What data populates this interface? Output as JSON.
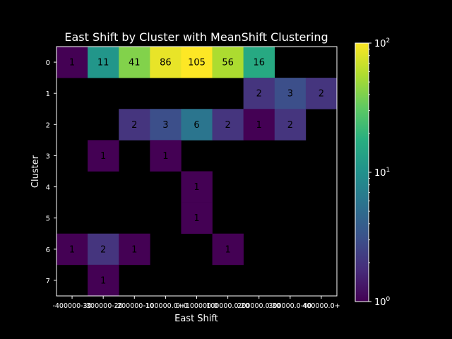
{
  "chart_data": {
    "type": "heatmap",
    "title": "East Shift by Cluster with MeanShift Clustering",
    "xlabel": "East Shift",
    "ylabel": "Cluster",
    "x_categories": [
      "-400000-300000",
      "-300000-200000",
      "-200000-100000",
      "-100000.0+0",
      "0+100000.0",
      "100000.0-200000.0",
      "200000.0-300000.0",
      "300000.0-400000.0",
      "400000.0+"
    ],
    "x_tick_labels_rendered": [
      "-400000-30",
      "-300000-20",
      "-200000-10",
      "-100000.0+0",
      "0+100000.0",
      "100000.0-20",
      "200000.0-30",
      "300000.0-40",
      "400000.0+"
    ],
    "y_categories": [
      "0",
      "1",
      "2",
      "3",
      "4",
      "5",
      "6",
      "7"
    ],
    "values": [
      [
        1,
        11,
        41,
        86,
        105,
        56,
        16,
        null,
        null
      ],
      [
        null,
        null,
        null,
        null,
        null,
        null,
        2,
        3,
        2
      ],
      [
        null,
        null,
        2,
        3,
        6,
        2,
        1,
        2,
        null
      ],
      [
        null,
        1,
        null,
        1,
        null,
        null,
        null,
        null,
        null
      ],
      [
        null,
        null,
        null,
        null,
        1,
        null,
        null,
        null,
        null
      ],
      [
        null,
        null,
        null,
        null,
        1,
        null,
        null,
        null,
        null
      ],
      [
        1,
        2,
        1,
        null,
        null,
        1,
        null,
        null,
        null
      ],
      [
        null,
        1,
        null,
        null,
        null,
        null,
        null,
        null,
        null
      ]
    ],
    "color_scale": "log",
    "colormap": "viridis",
    "colorbar": {
      "range": [
        1,
        100
      ],
      "ticks": [
        {
          "base": "10",
          "exp": "0",
          "value": 1
        },
        {
          "base": "10",
          "exp": "1",
          "value": 10
        },
        {
          "base": "10",
          "exp": "2",
          "value": 100
        }
      ]
    },
    "cell_label_color": "#000000",
    "missing_color": "#000000",
    "grid": false
  }
}
